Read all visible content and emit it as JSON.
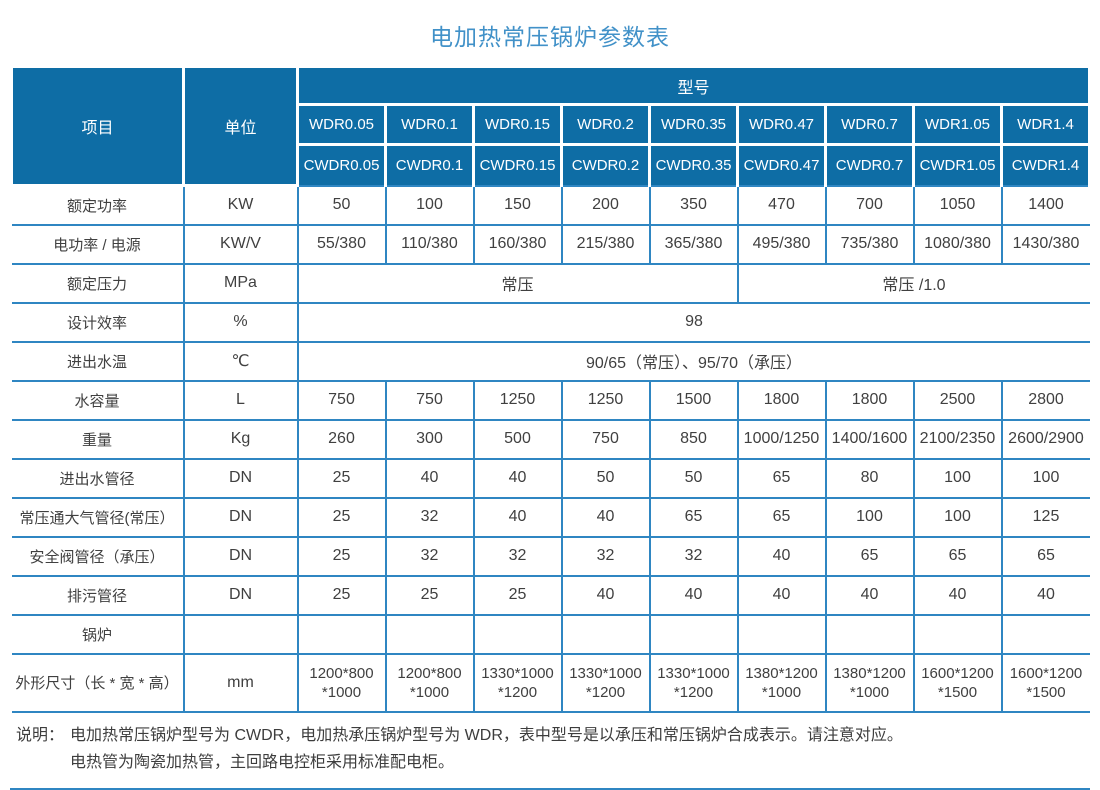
{
  "title": "电加热常压锅炉参数表",
  "colors": {
    "header_bg": "#0e6da5",
    "grid_blue": "#2f86c2",
    "title_blue": "#4191c8",
    "body_text": "#404040"
  },
  "table": {
    "item_header": "项目",
    "unit_header": "单位",
    "model_header": "型号",
    "model_rows": [
      [
        "WDR0.05",
        "WDR0.1",
        "WDR0.15",
        "WDR0.2",
        "WDR0.35",
        "WDR0.47",
        "WDR0.7",
        "WDR1.05",
        "WDR1.4"
      ],
      [
        "CWDR0.05",
        "CWDR0.1",
        "CWDR0.15",
        "CWDR0.2",
        "CWDR0.35",
        "CWDR0.47",
        "CWDR0.7",
        "CWDR1.05",
        "CWDR1.4"
      ]
    ],
    "rows": [
      {
        "label": "额定功率",
        "unit": "KW",
        "cells": [
          "50",
          "100",
          "150",
          "200",
          "350",
          "470",
          "700",
          "1050",
          "1400"
        ]
      },
      {
        "label": "电功率 / 电源",
        "unit": "KW/V",
        "cells": [
          "55/380",
          "110/380",
          "160/380",
          "215/380",
          "365/380",
          "495/380",
          "735/380",
          "1080/380",
          "1430/380"
        ]
      },
      {
        "label": "额定压力",
        "unit": "MPa",
        "cells": [
          {
            "text": "常压",
            "span": 5
          },
          {
            "text": "常压 /1.0",
            "span": 4
          }
        ]
      },
      {
        "label": "设计效率",
        "unit": "%",
        "cells": [
          {
            "text": "98",
            "span": 9
          }
        ]
      },
      {
        "label": "进出水温",
        "unit": "℃",
        "cells": [
          {
            "text": "90/65（常压）、95/70（承压）",
            "span": 9
          }
        ]
      },
      {
        "label": "水容量",
        "unit": "L",
        "cells": [
          "750",
          "750",
          "1250",
          "1250",
          "1500",
          "1800",
          "1800",
          "2500",
          "2800"
        ]
      },
      {
        "label": "重量",
        "unit": "Kg",
        "cells": [
          "260",
          "300",
          "500",
          "750",
          "850",
          "1000/1250",
          "1400/1600",
          "2100/2350",
          "2600/2900"
        ]
      },
      {
        "label": "进出水管径",
        "unit": "DN",
        "cells": [
          "25",
          "40",
          "40",
          "50",
          "50",
          "65",
          "80",
          "100",
          "100"
        ]
      },
      {
        "label": "常压通大气管径(常压）",
        "unit": "DN",
        "cells": [
          "25",
          "32",
          "40",
          "40",
          "65",
          "65",
          "100",
          "100",
          "125"
        ]
      },
      {
        "label": "安全阀管径（承压）",
        "unit": "DN",
        "cells": [
          "25",
          "32",
          "32",
          "32",
          "32",
          "40",
          "65",
          "65",
          "65"
        ]
      },
      {
        "label": "排污管径",
        "unit": "DN",
        "cells": [
          "25",
          "25",
          "25",
          "40",
          "40",
          "40",
          "40",
          "40",
          "40"
        ]
      },
      {
        "label": "锅炉",
        "unit": "",
        "cells": [
          "",
          "",
          "",
          "",
          "",
          "",
          "",
          "",
          ""
        ]
      },
      {
        "label": "外形尺寸（长 * 宽 * 高）",
        "unit": "mm",
        "cells": [
          "1200*800\n*1000",
          "1200*800\n*1000",
          "1330*1000\n*1200",
          "1330*1000\n*1200",
          "1330*1000\n*1200",
          "1380*1200\n*1000",
          "1380*1200\n*1000",
          "1600*1200\n*1500",
          "1600*1200\n*1500"
        ]
      }
    ]
  },
  "notes": {
    "prefix": "说明：",
    "lines": [
      "电加热常压锅炉型号为 CWDR，电加热承压锅炉型号为 WDR，表中型号是以承压和常压锅炉合成表示。请注意对应。",
      "电热管为陶瓷加热管，主回路电控柜采用标准配电柜。"
    ]
  }
}
